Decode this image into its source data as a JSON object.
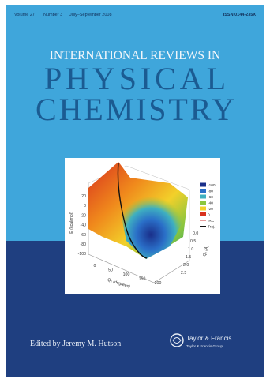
{
  "header": {
    "volume": "Volume 27",
    "number": "Number 3",
    "date": "July–September 2008",
    "issn": "ISSN 0144-235X"
  },
  "title": {
    "line1": "INTERNATIONAL REVIEWS IN",
    "line2": "PHYSICAL",
    "line3": "CHEMISTRY"
  },
  "figure": {
    "y_axis_label": "E (kcal/mol)",
    "y_ticks": [
      "20",
      "0",
      "-20",
      "-40",
      "-60",
      "-80",
      "-100"
    ],
    "x_axis_label": "Q₂ (degrees)",
    "x_ticks": [
      "0",
      "50",
      "100",
      "150",
      "200"
    ],
    "z_axis_label": "Q₁ (Å)",
    "z_ticks": [
      "0.0",
      "0.5",
      "1.0",
      "1.5",
      "2.0",
      "2.5"
    ],
    "legend": [
      "-100",
      "-80",
      "-60",
      "-40",
      "-20",
      "0",
      "IRC",
      "Traj."
    ]
  },
  "editor": "Edited by Jeremy M. Hutson",
  "publisher": {
    "name": "Taylor & Francis",
    "group": "Taylor & Francis Group"
  }
}
